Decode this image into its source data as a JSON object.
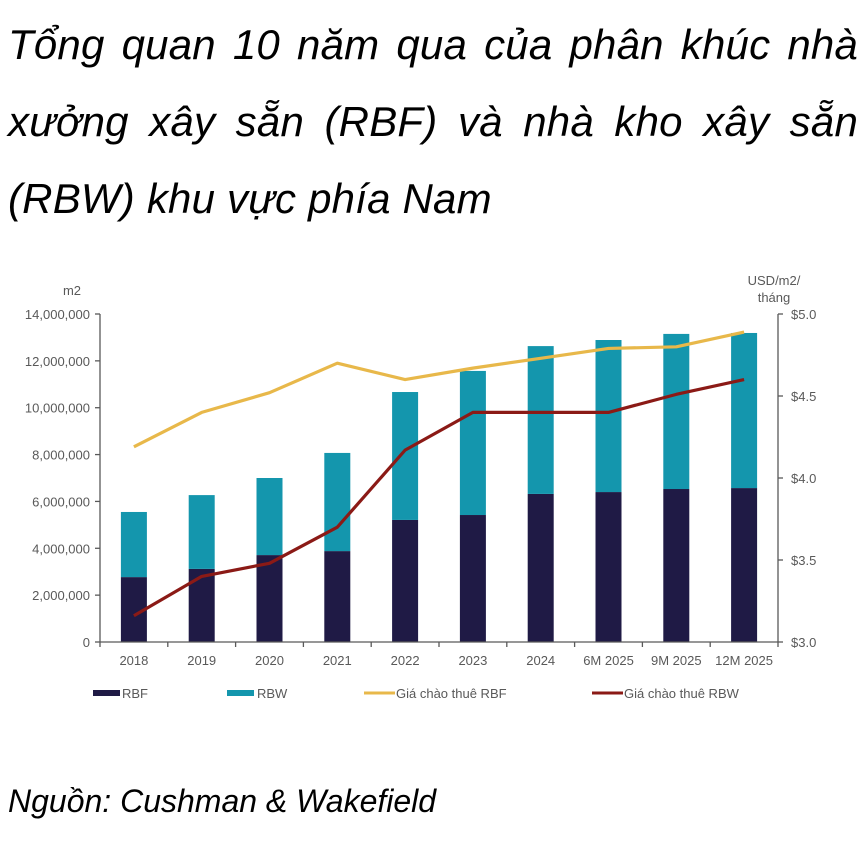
{
  "title": "Tổng quan 10 năm qua của phân khúc nhà xưởng xây sẵn (RBF) và nhà kho xây sẵn (RBW) khu vực phía Nam",
  "source": "Nguồn: Cushman & Wakefield",
  "colors": {
    "rbf": "#1f1a45",
    "rbw": "#1496ad",
    "price_rbf": "#e8b84a",
    "price_rbw": "#8b1a16",
    "axis": "#595959"
  },
  "chart_data": {
    "type": "bar",
    "stacked": true,
    "title": "Tổng quan 10 năm qua của phân khúc nhà xưởng xây sẵn (RBF) và nhà kho xây sẵn (RBW) khu vực phía Nam",
    "categories": [
      "2018",
      "2019",
      "2020",
      "2021",
      "2022",
      "2023",
      "2024",
      "6M 2025",
      "9M 2025",
      "12M 2025"
    ],
    "series": [
      {
        "name": "RBF",
        "type": "bar",
        "axis": "left",
        "values": [
          2770000,
          3120000,
          3710000,
          3880000,
          5210000,
          5420000,
          6320000,
          6400000,
          6530000,
          6570000
        ]
      },
      {
        "name": "RBW",
        "type": "bar",
        "axis": "left",
        "values": [
          2780000,
          3150000,
          3290000,
          4190000,
          5460000,
          6150000,
          6310000,
          6490000,
          6620000,
          6620000
        ]
      },
      {
        "name": "Giá chào thuê RBF",
        "type": "line",
        "axis": "right",
        "values": [
          4.19,
          4.4,
          4.52,
          4.7,
          4.6,
          4.67,
          4.73,
          4.79,
          4.8,
          4.89
        ]
      },
      {
        "name": "Giá chào thuê RBW",
        "type": "line",
        "axis": "right",
        "values": [
          3.16,
          3.4,
          3.48,
          3.7,
          4.17,
          4.4,
          4.4,
          4.4,
          4.51,
          4.6
        ]
      }
    ],
    "left_axis": {
      "label": "m2",
      "ylim": [
        0,
        14000000
      ],
      "ticks": [
        "0",
        "2,000,000",
        "4,000,000",
        "6,000,000",
        "8,000,000",
        "10,000,000",
        "12,000,000",
        "14,000,000"
      ]
    },
    "right_axis": {
      "label_line1": "USD/m2/",
      "label_line2": "tháng",
      "ylim": [
        3.0,
        5.0
      ],
      "ticks": [
        "$3.0",
        "$3.5",
        "$4.0",
        "$4.5",
        "$5.0"
      ]
    },
    "xlabel": "",
    "grid": false,
    "legend_position": "bottom",
    "legend": [
      "RBF",
      "RBW",
      "Giá chào thuê RBF",
      "Giá chào thuê RBW"
    ]
  }
}
